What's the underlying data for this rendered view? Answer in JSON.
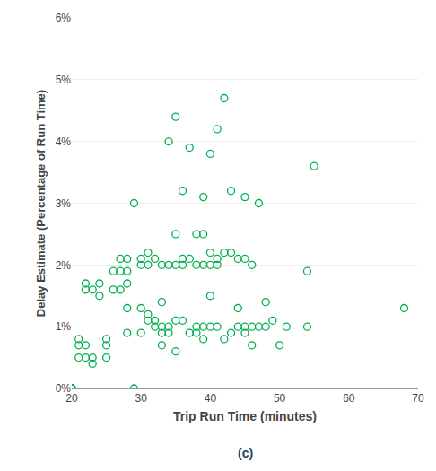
{
  "chart_data": {
    "type": "scatter",
    "xlabel": "Trip Run Time (minutes)",
    "ylabel": "Delay Estimate (Percentage of Run Time)",
    "annotations": [
      "(c)"
    ],
    "xlim": [
      20,
      70
    ],
    "ylim": [
      0,
      0.06
    ],
    "xticks": [
      20,
      30,
      40,
      50,
      60,
      70
    ],
    "yticks": [
      {
        "value": 0.0,
        "label": "0%"
      },
      {
        "value": 0.01,
        "label": "1%"
      },
      {
        "value": 0.02,
        "label": "2%"
      },
      {
        "value": 0.03,
        "label": "3%"
      },
      {
        "value": 0.04,
        "label": "4%"
      },
      {
        "value": 0.05,
        "label": "5%"
      },
      {
        "value": 0.06,
        "label": "6%"
      }
    ],
    "grid": "y",
    "color": "#00b050",
    "marker": "circle-open",
    "x": [
      20,
      20,
      20,
      20,
      20,
      20,
      21,
      21,
      21,
      22,
      22,
      22,
      22,
      23,
      23,
      23,
      24,
      24,
      25,
      25,
      25,
      26,
      26,
      27,
      27,
      27,
      28,
      28,
      28,
      28,
      28,
      29,
      29,
      30,
      30,
      30,
      30,
      31,
      31,
      31,
      31,
      32,
      32,
      32,
      33,
      33,
      33,
      33,
      33,
      34,
      34,
      34,
      34,
      35,
      35,
      35,
      35,
      35,
      36,
      36,
      36,
      36,
      37,
      37,
      37,
      38,
      38,
      38,
      38,
      39,
      39,
      39,
      39,
      39,
      40,
      40,
      40,
      40,
      40,
      41,
      41,
      41,
      41,
      42,
      42,
      42,
      43,
      43,
      43,
      44,
      44,
      44,
      45,
      45,
      45,
      45,
      46,
      46,
      46,
      47,
      47,
      48,
      48,
      49,
      50,
      51,
      54,
      54,
      55,
      68
    ],
    "values": [
      0.0,
      0.0,
      0.0,
      0.0,
      0.0,
      0.0,
      0.005,
      0.007,
      0.008,
      0.005,
      0.007,
      0.016,
      0.017,
      0.004,
      0.005,
      0.016,
      0.015,
      0.017,
      0.005,
      0.007,
      0.008,
      0.016,
      0.019,
      0.016,
      0.019,
      0.021,
      0.009,
      0.013,
      0.017,
      0.019,
      0.021,
      0.0,
      0.03,
      0.009,
      0.013,
      0.02,
      0.021,
      0.011,
      0.012,
      0.02,
      0.022,
      0.01,
      0.011,
      0.021,
      0.007,
      0.009,
      0.01,
      0.014,
      0.02,
      0.009,
      0.01,
      0.02,
      0.04,
      0.006,
      0.011,
      0.02,
      0.025,
      0.044,
      0.011,
      0.02,
      0.021,
      0.032,
      0.009,
      0.021,
      0.039,
      0.009,
      0.01,
      0.02,
      0.025,
      0.008,
      0.01,
      0.02,
      0.025,
      0.031,
      0.01,
      0.015,
      0.02,
      0.022,
      0.038,
      0.01,
      0.02,
      0.021,
      0.042,
      0.008,
      0.022,
      0.047,
      0.009,
      0.022,
      0.032,
      0.01,
      0.013,
      0.021,
      0.009,
      0.01,
      0.021,
      0.031,
      0.007,
      0.01,
      0.02,
      0.01,
      0.03,
      0.01,
      0.014,
      0.011,
      0.007,
      0.01,
      0.01,
      0.019,
      0.036,
      0.013
    ]
  }
}
